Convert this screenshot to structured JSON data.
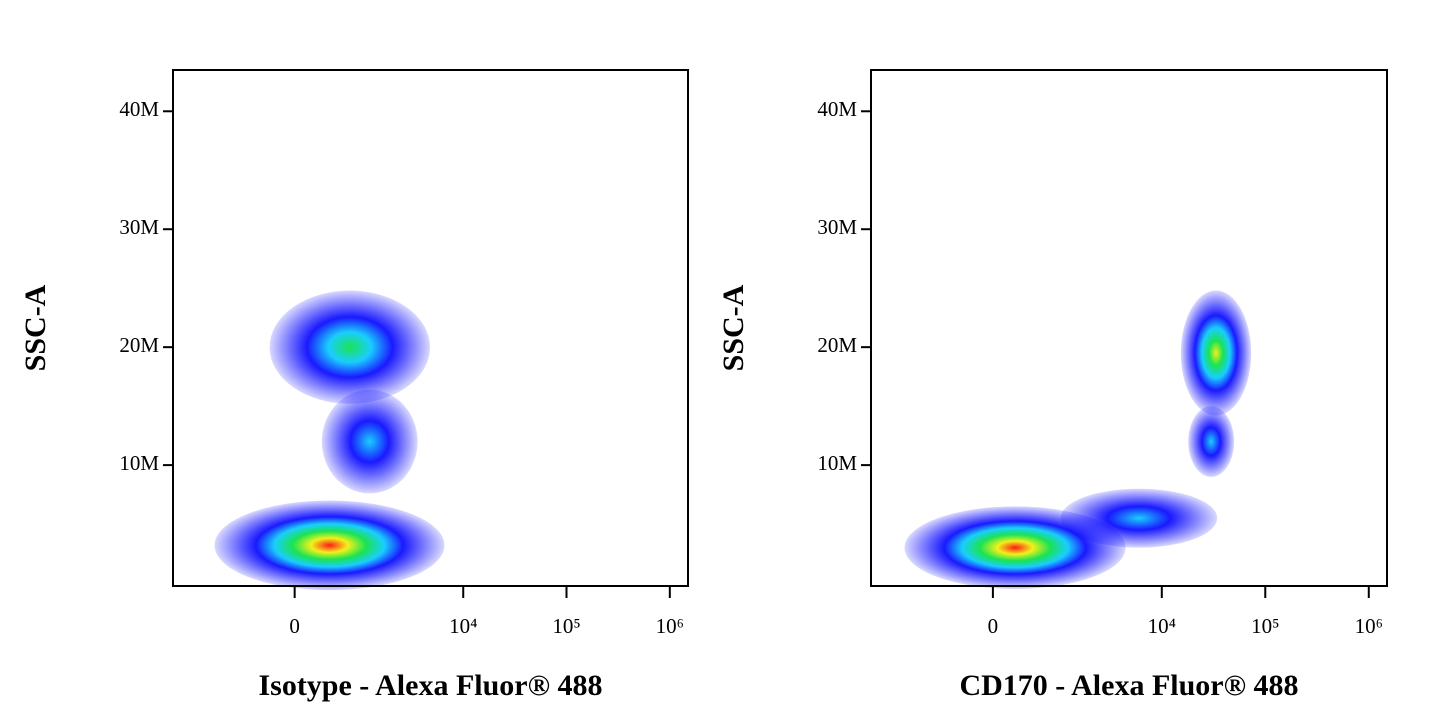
{
  "chart_data": [
    {
      "type": "scatter",
      "x_label": "Isotype - Alexa Fluor® 488",
      "y_label": "SSC-A",
      "xscale": "asinh",
      "x_cofactor": 467,
      "xlim": [
        -3500,
        1500000
      ],
      "ylim": [
        -250000,
        43500000
      ],
      "xticks": [
        0,
        {
          "value": 10000,
          "label": "10⁴"
        },
        {
          "value": 100000,
          "label": "10⁵"
        },
        {
          "value": 1000000,
          "label": "10⁶"
        }
      ],
      "yticks": [
        {
          "value": 10000000,
          "label": "10M"
        },
        {
          "value": 20000000,
          "label": "20M"
        },
        {
          "value": 30000000,
          "label": "30M"
        },
        {
          "value": 40000000,
          "label": "40M"
        }
      ],
      "colormap": [
        "#0000ff",
        "#00c8ff",
        "#00e040",
        "#f0f000",
        "#ff0000"
      ],
      "populations": {
        "x": [
          400,
          730,
          1200
        ],
        "y": [
          3200000,
          20000000,
          12000000
        ],
        "x_extent": [
          [
            -1355,
            3040
          ],
          [
            -275,
            3040
          ],
          [
            300,
            3040
          ]
        ],
        "y_extent": [
          [
            1950000,
            7000000
          ],
          [
            15900000,
            24800000
          ],
          [
            8700000,
            16400000
          ]
        ],
        "peak": [
          1,
          0.55,
          0.3
        ]
      }
    },
    {
      "type": "scatter",
      "x_label": "CD170 - Alexa Fluor® 488",
      "y_label": "SSC-A",
      "xscale": "asinh",
      "x_cofactor": 467,
      "xlim": [
        -3500,
        1500000
      ],
      "ylim": [
        -250000,
        43500000
      ],
      "xticks": [
        0,
        {
          "value": 10000,
          "label": "10⁴"
        },
        {
          "value": 100000,
          "label": "10⁵"
        },
        {
          "value": 1000000,
          "label": "10⁶"
        }
      ],
      "yticks": [
        {
          "value": 10000000,
          "label": "10M"
        },
        {
          "value": 20000000,
          "label": "20M"
        },
        {
          "value": 30000000,
          "label": "30M"
        },
        {
          "value": 40000000,
          "label": "40M"
        }
      ],
      "colormap": [
        "#0000ff",
        "#00c8ff",
        "#00e040",
        "#f0f000",
        "#ff0000"
      ],
      "populations": {
        "x": [
          240,
          6000,
          30000,
          33400
        ],
        "y": [
          3000000,
          5500000,
          12000000,
          19500000
        ],
        "x_extent": [
          [
            -1635,
            2520
          ],
          [
            1000,
            20000
          ],
          [
            18000,
            50000
          ],
          [
            15270,
            72900
          ]
        ],
        "y_extent": [
          [
            2000000,
            6500000
          ],
          [
            4000000,
            8000000
          ],
          [
            9000000,
            15000000
          ],
          [
            14700000,
            24800000
          ]
        ],
        "peak": [
          1,
          0.25,
          0.35,
          0.7
        ]
      }
    }
  ]
}
